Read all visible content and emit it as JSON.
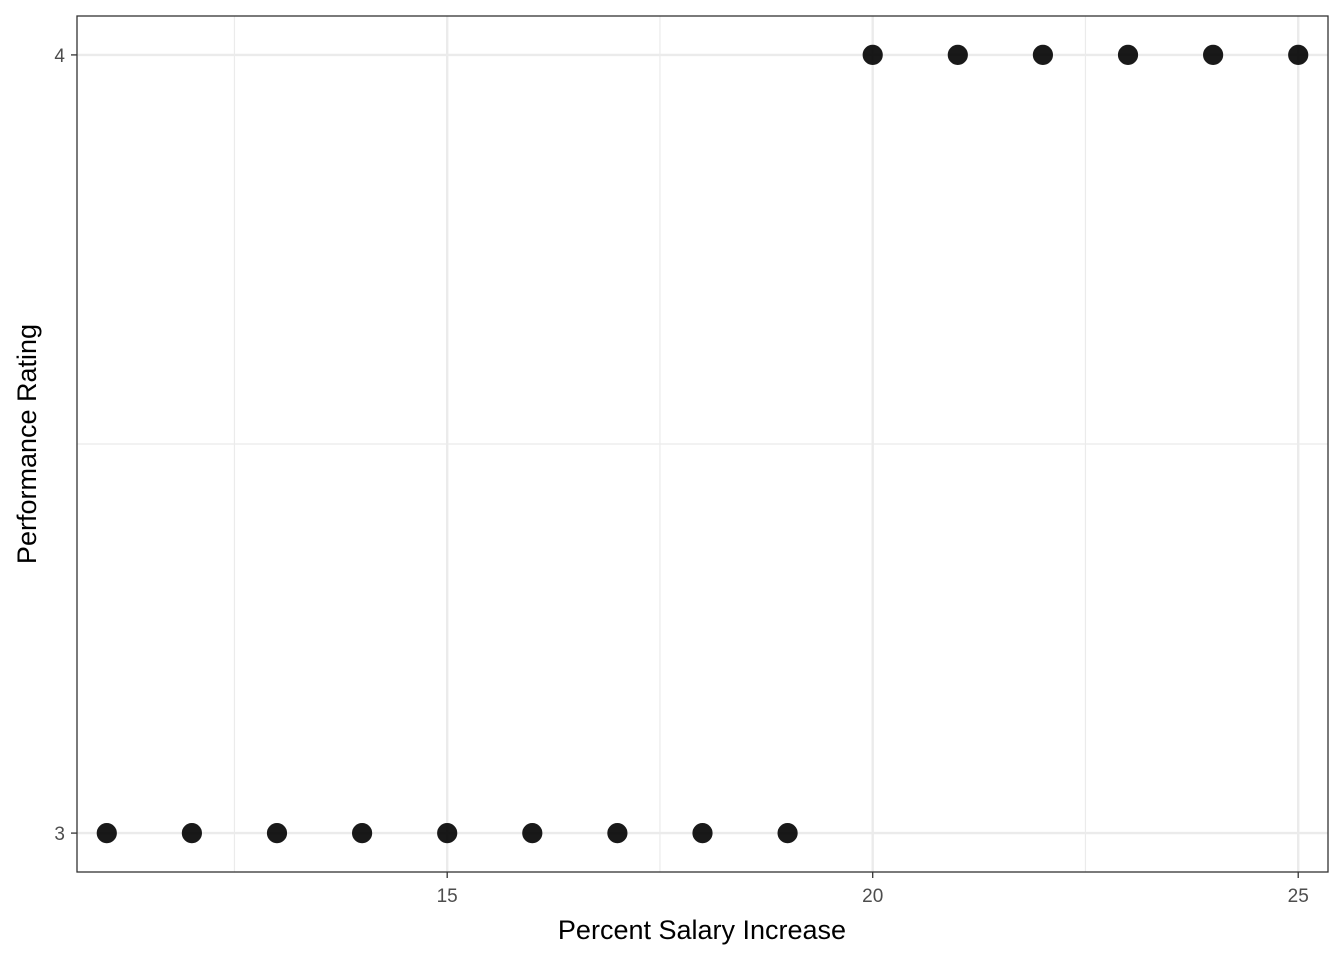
{
  "chart_data": {
    "type": "scatter",
    "title": "",
    "xlabel": "Percent Salary Increase",
    "ylabel": "Performance Rating",
    "xlim": [
      10.65,
      25.35
    ],
    "ylim": [
      2.95,
      4.05
    ],
    "x_ticks": [
      15,
      20,
      25
    ],
    "x_minor_ticks": [
      12.5,
      17.5,
      22.5
    ],
    "y_ticks": [
      3,
      4
    ],
    "y_minor_ticks": [
      3.5
    ],
    "grid": true,
    "legend": "none",
    "point_color": "#000000",
    "series": [
      {
        "x": [
          11,
          12,
          13,
          14,
          15,
          16,
          17,
          18,
          19,
          20,
          21,
          22,
          23,
          24,
          25
        ],
        "y": [
          3,
          3,
          3,
          3,
          3,
          3,
          3,
          3,
          3,
          4,
          4,
          4,
          4,
          4,
          4
        ]
      }
    ]
  }
}
